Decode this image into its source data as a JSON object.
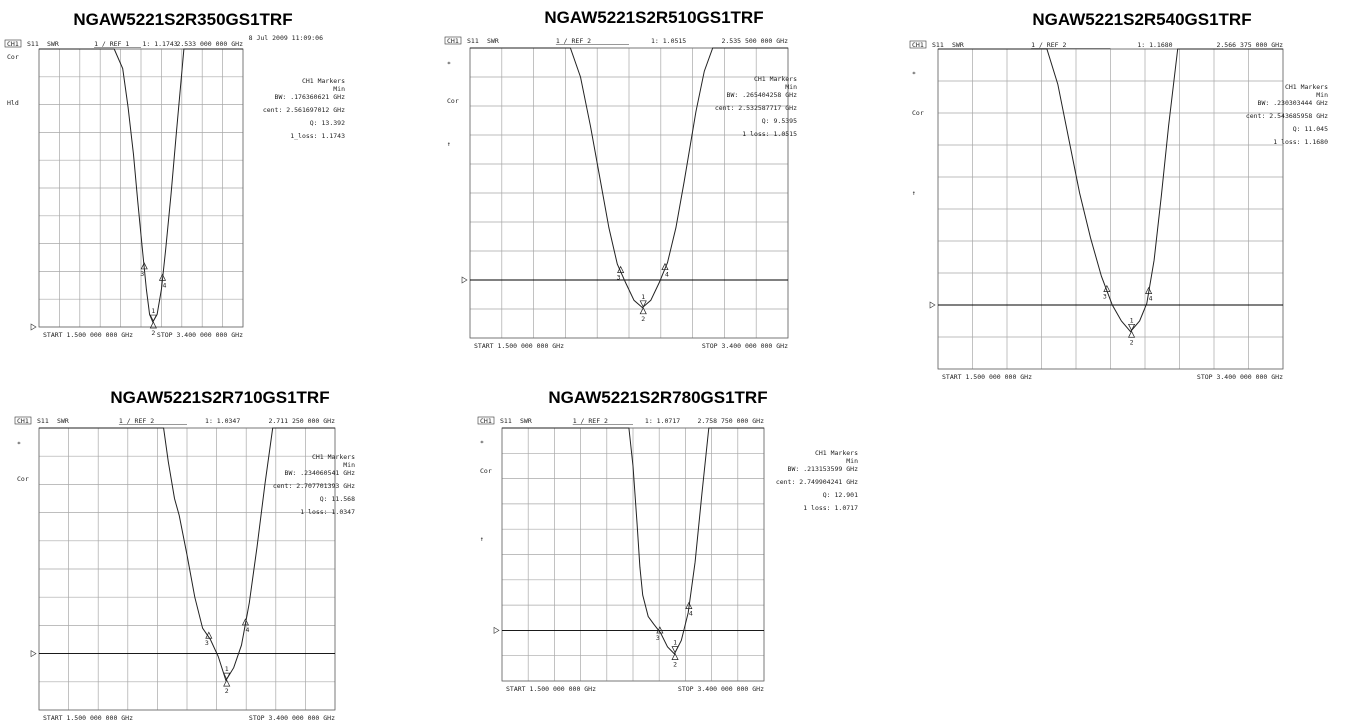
{
  "chart_data": [
    {
      "type": "line",
      "title": "NGAW5221S2R350GS1TRF",
      "header": {
        "ch": "CH1",
        "param": "S11",
        "format": "SWR",
        "scale": "1 / REF 1",
        "marker_readout": "1: 1.1743",
        "marker_freq": "2.533 000 000 GHz",
        "date": "8 Jul 2009  11:09:06"
      },
      "side_left": [
        "Cor",
        "Hld"
      ],
      "markers_panel": [
        "CH1 Markers",
        "Min",
        "BW: .176360621 GHz",
        "cent: 2.561697012 GHz",
        "Q: 13.392",
        "1_loss: 1.1743"
      ],
      "start_label": "START 1.500 000 000 GHz",
      "stop_label": "STOP 3.400 000 000 GHz",
      "xlim": [
        1.5,
        3.4
      ],
      "ylim": [
        1,
        11
      ],
      "ref_value": 1,
      "ref_line": false,
      "x": [
        1.5,
        2.2,
        2.28,
        2.33,
        2.38,
        2.42,
        2.46,
        2.5,
        2.53,
        2.56,
        2.6,
        2.64,
        2.68,
        2.73,
        2.78,
        2.85,
        3.4
      ],
      "y": [
        11,
        11,
        10.3,
        8.9,
        7.2,
        5.5,
        3.9,
        2.35,
        1.45,
        1.18,
        1.45,
        2.35,
        3.8,
        5.8,
        8.0,
        11,
        11
      ],
      "marker_points": [
        {
          "label": "1",
          "x": 2.565
        },
        {
          "label": "2",
          "x": 2.565
        },
        {
          "label": "3",
          "x": 2.48
        },
        {
          "label": "4",
          "x": 2.65
        }
      ]
    },
    {
      "type": "line",
      "title": "NGAW5221S2R510GS1TRF",
      "header": {
        "ch": "CH1",
        "param": "S11",
        "format": "SWR",
        "scale": "1 / REF 2",
        "marker_readout": "1: 1.0515",
        "marker_freq": "2.535 500 000 GHz",
        "date": ""
      },
      "side_left": [
        "*",
        "Cor",
        "↑"
      ],
      "markers_panel": [
        "CH1 Markers",
        "Min",
        "BW: .265404258 GHz",
        "cent: 2.532587717 GHz",
        "Q: 9.5395",
        "1 loss: 1.0515"
      ],
      "start_label": "START 1.500 000 000 GHz",
      "stop_label": "STOP 3.400 000 000 GHz",
      "xlim": [
        1.5,
        3.4
      ],
      "ylim": [
        0,
        10
      ],
      "ref_value": 2,
      "ref_line": true,
      "x": [
        1.5,
        2.1,
        2.16,
        2.22,
        2.28,
        2.33,
        2.38,
        2.43,
        2.48,
        2.53,
        2.58,
        2.63,
        2.68,
        2.73,
        2.78,
        2.85,
        2.9,
        2.95,
        3.4
      ],
      "y": [
        10,
        10,
        9.0,
        7.3,
        5.4,
        3.8,
        2.55,
        1.9,
        1.3,
        1.05,
        1.3,
        1.9,
        2.6,
        3.8,
        5.4,
        7.8,
        9.2,
        10,
        10
      ],
      "marker_points": [
        {
          "label": "1",
          "x": 2.535
        },
        {
          "label": "2",
          "x": 2.535
        },
        {
          "label": "3",
          "x": 2.4
        },
        {
          "label": "4",
          "x": 2.665
        }
      ]
    },
    {
      "type": "line",
      "title": "NGAW5221S2R540GS1TRF",
      "header": {
        "ch": "CH1",
        "param": "S11",
        "format": "SWR",
        "scale": "1 / REF 2",
        "marker_readout": "1: 1.1680",
        "marker_freq": "2.566 375 000 GHz",
        "date": ""
      },
      "side_left": [
        "*",
        "Cor",
        "↑"
      ],
      "markers_panel": [
        "CH1 Markers",
        "Min",
        "BW: .230303444 GHz",
        "cent: 2.543685958 GHz",
        "Q: 11.045",
        "1 loss: 1.1680"
      ],
      "start_label": "START 1.500 000 000 GHz",
      "stop_label": "STOP 3.400 000 000 GHz",
      "xlim": [
        1.5,
        3.4
      ],
      "ylim": [
        0,
        10
      ],
      "ref_value": 2,
      "ref_line": true,
      "x": [
        1.5,
        2.1,
        2.16,
        2.22,
        2.28,
        2.34,
        2.4,
        2.46,
        2.51,
        2.56,
        2.61,
        2.65,
        2.69,
        2.73,
        2.77,
        2.82,
        3.4
      ],
      "y": [
        10,
        10,
        8.9,
        7.2,
        5.5,
        4.1,
        2.9,
        2.0,
        1.5,
        1.17,
        1.5,
        2.05,
        3.4,
        5.4,
        7.6,
        10,
        10
      ],
      "marker_points": [
        {
          "label": "1",
          "x": 2.566
        },
        {
          "label": "2",
          "x": 2.566
        },
        {
          "label": "3",
          "x": 2.43
        },
        {
          "label": "4",
          "x": 2.66
        }
      ]
    },
    {
      "type": "line",
      "title": "NGAW5221S2R710GS1TRF",
      "header": {
        "ch": "CH1",
        "param": "S11",
        "format": "SWR",
        "scale": "1 / REF 2",
        "marker_readout": "1: 1.0347",
        "marker_freq": "2.711 250 000 GHz",
        "date": ""
      },
      "side_left": [
        "*",
        "Cor"
      ],
      "markers_panel": [
        "CH1 Markers",
        "Min",
        "BW: .234060541 GHz",
        "cent: 2.707701393 GHz",
        "Q: 11.568",
        "1 loss: 1.0347"
      ],
      "start_label": "START 1.500 000 000 GHz",
      "stop_label": "STOP 3.400 000 000 GHz",
      "xlim": [
        1.5,
        3.4
      ],
      "ylim": [
        0,
        10
      ],
      "ref_value": 2,
      "ref_line": true,
      "x": [
        1.5,
        2.3,
        2.33,
        2.37,
        2.4,
        2.45,
        2.5,
        2.55,
        2.6,
        2.65,
        2.7,
        2.75,
        2.8,
        2.85,
        2.9,
        2.95,
        3.0,
        3.4
      ],
      "y": [
        10,
        10,
        8.8,
        7.5,
        6.9,
        5.5,
        4.0,
        2.9,
        2.5,
        1.9,
        1.05,
        1.5,
        2.3,
        3.8,
        5.8,
        8.0,
        10,
        10
      ],
      "marker_points": [
        {
          "label": "1",
          "x": 2.705
        },
        {
          "label": "2",
          "x": 2.705
        },
        {
          "label": "3",
          "x": 2.59
        },
        {
          "label": "4",
          "x": 2.825
        }
      ]
    },
    {
      "type": "line",
      "title": "NGAW5221S2R780GS1TRF",
      "header": {
        "ch": "CH1",
        "param": "S11",
        "format": "SWR",
        "scale": "1 / REF 2",
        "marker_readout": "1: 1.0717",
        "marker_freq": "2.758 750 000 GHz",
        "date": ""
      },
      "side_left": [
        "*",
        "Cor",
        "↑"
      ],
      "markers_panel": [
        "CH1 Markers",
        "Min",
        "BW: .213153599 GHz",
        "cent: 2.749904241 GHz",
        "Q: 12.901",
        "1 loss: 1.0717"
      ],
      "start_label": "START 1.500 000 000 GHz",
      "stop_label": "STOP 3.400 000 000 GHz",
      "xlim": [
        1.5,
        3.4
      ],
      "ylim": [
        0,
        10
      ],
      "ref_value": 2,
      "ref_line": true,
      "x": [
        1.5,
        2.42,
        2.45,
        2.48,
        2.5,
        2.52,
        2.56,
        2.6,
        2.65,
        2.7,
        2.75,
        2.8,
        2.85,
        2.9,
        2.95,
        3.0,
        3.4
      ],
      "y": [
        10,
        10,
        8.5,
        6.2,
        4.5,
        3.4,
        2.55,
        2.25,
        1.9,
        1.35,
        1.07,
        1.6,
        2.7,
        4.7,
        7.4,
        10,
        10
      ],
      "marker_points": [
        {
          "label": "1",
          "x": 2.755
        },
        {
          "label": "2",
          "x": 2.755
        },
        {
          "label": "3",
          "x": 2.645
        },
        {
          "label": "4",
          "x": 2.855
        }
      ]
    }
  ]
}
